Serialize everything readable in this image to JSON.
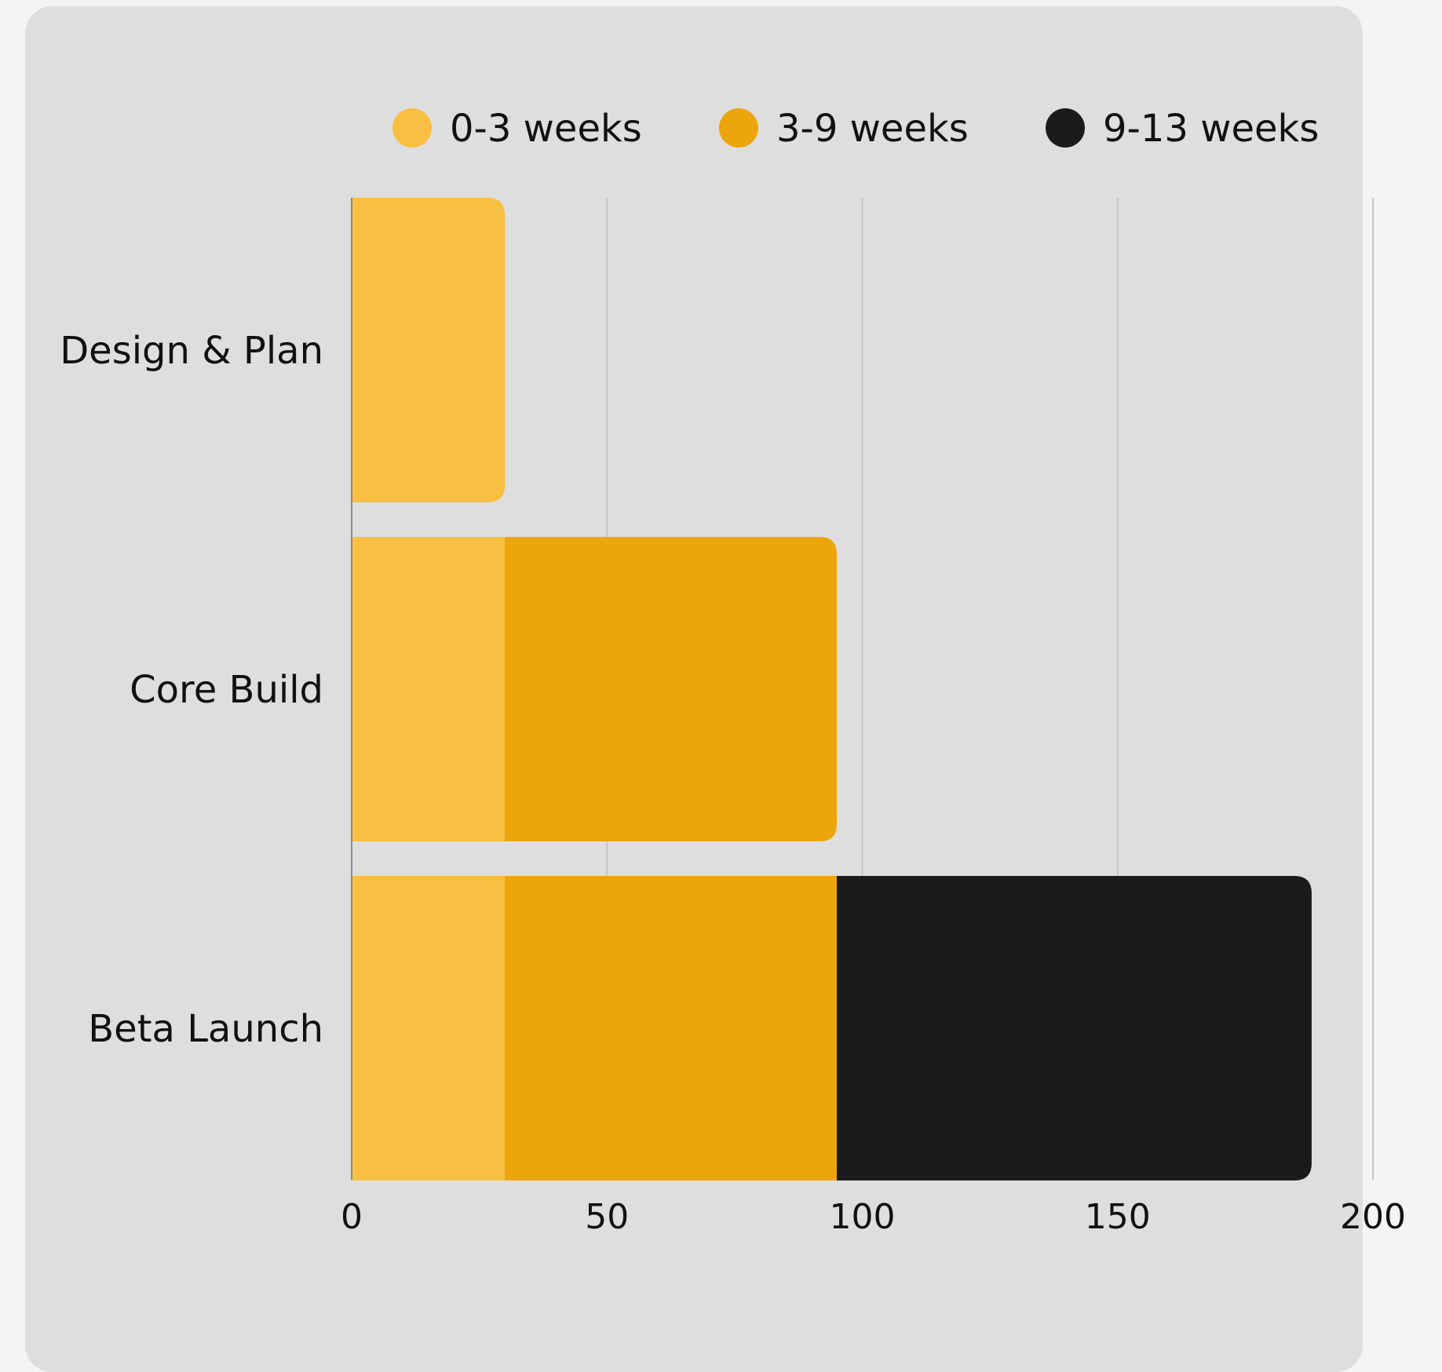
{
  "chart_data": {
    "type": "bar",
    "orientation": "horizontal",
    "stacked": true,
    "categories": [
      "Design & Plan",
      "Core Build",
      "Beta Launch"
    ],
    "series": [
      {
        "name": "0-3 weeks",
        "color": "#f8bf42",
        "values": [
          30,
          30,
          30
        ]
      },
      {
        "name": "3-9 weeks",
        "color": "#eca50a",
        "values": [
          0,
          65,
          65
        ]
      },
      {
        "name": "9-13 weeks",
        "color": "#1b1b1b",
        "values": [
          0,
          0,
          93
        ]
      }
    ],
    "xlim": [
      0,
      200
    ],
    "xticks": [
      "0",
      "50",
      "100",
      "150",
      "200"
    ],
    "grid": true,
    "legend_position": "top"
  }
}
